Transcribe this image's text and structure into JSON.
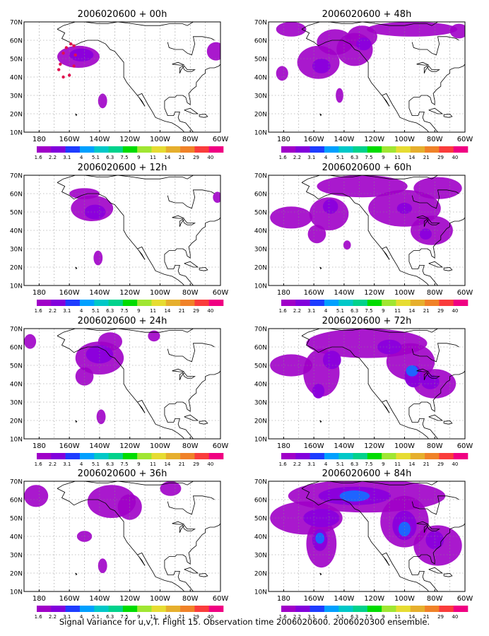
{
  "caption": "Signal Variance for u,v,T. Flight 15. Observation time 2006020600. 2006020300 ensemble.",
  "colorbar": {
    "labels": [
      "1.6",
      "2.2",
      "3.1",
      "4",
      "5.1",
      "6.3",
      "7.5",
      "9",
      "11",
      "14",
      "21",
      "29",
      "40"
    ],
    "colors": [
      "#a000c8",
      "#8200dc",
      "#1e3cff",
      "#00a0ff",
      "#00c8c8",
      "#00d28c",
      "#00dc00",
      "#a0e632",
      "#e6dc32",
      "#e6af2d",
      "#f08228",
      "#fa3c3c",
      "#f00082"
    ]
  },
  "chart_data": [
    {
      "type": "heatmap",
      "title": "2006020600 + 00h",
      "lead_hours": 0,
      "x_ticks": [
        "180",
        "160W",
        "140W",
        "120W",
        "100W",
        "80W",
        "60W"
      ],
      "y_ticks": [
        "10N",
        "20N",
        "30N",
        "40N",
        "50N",
        "60N",
        "70N"
      ],
      "xlim": [
        -190,
        -60
      ],
      "ylim": [
        10,
        70
      ],
      "blobs": [
        {
          "lon": -154,
          "lat": 51,
          "rlon": 14,
          "rlat": 6,
          "level": 1
        },
        {
          "lon": -152,
          "lat": 52,
          "rlon": 8,
          "rlat": 3.5,
          "level": 2
        },
        {
          "lon": -138,
          "lat": 27,
          "rlon": 3,
          "rlat": 4,
          "level": 1
        },
        {
          "lon": -63,
          "lat": 54,
          "rlon": 6,
          "rlat": 5,
          "level": 1
        }
      ],
      "observations": [
        {
          "lon": -166,
          "lat": 47
        },
        {
          "lon": -164,
          "lat": 53
        },
        {
          "lon": -162,
          "lat": 56
        },
        {
          "lon": -159,
          "lat": 58
        },
        {
          "lon": -157,
          "lat": 57
        },
        {
          "lon": -156,
          "lat": 52
        },
        {
          "lon": -157,
          "lat": 46
        },
        {
          "lon": -160,
          "lat": 41
        },
        {
          "lon": -164,
          "lat": 40
        },
        {
          "lon": -167,
          "lat": 44
        }
      ]
    },
    {
      "type": "heatmap",
      "title": "2006020600 + 48h",
      "lead_hours": 48,
      "x_ticks": [
        "180",
        "160W",
        "140W",
        "120W",
        "100W",
        "80W",
        "60W"
      ],
      "y_ticks": [
        "10N",
        "20N",
        "30N",
        "40N",
        "50N",
        "60N",
        "70N"
      ],
      "xlim": [
        -190,
        -60
      ],
      "ylim": [
        10,
        70
      ],
      "blobs": [
        {
          "lon": -157,
          "lat": 48,
          "rlon": 14,
          "rlat": 9,
          "level": 1
        },
        {
          "lon": -146,
          "lat": 59,
          "rlon": 12,
          "rlat": 7,
          "level": 1
        },
        {
          "lon": -133,
          "lat": 55,
          "rlon": 12,
          "rlat": 9,
          "level": 1
        },
        {
          "lon": -128,
          "lat": 62,
          "rlon": 10,
          "rlat": 6,
          "level": 1
        },
        {
          "lon": -155,
          "lat": 46,
          "rlon": 6,
          "rlat": 4,
          "level": 2
        },
        {
          "lon": -127,
          "lat": 58,
          "rlon": 5,
          "rlat": 3.5,
          "level": 2
        },
        {
          "lon": -175,
          "lat": 66,
          "rlon": 10,
          "rlat": 4,
          "level": 1
        },
        {
          "lon": -95,
          "lat": 66,
          "rlon": 30,
          "rlat": 4,
          "level": 1
        },
        {
          "lon": -64,
          "lat": 65,
          "rlon": 6,
          "rlat": 4,
          "level": 1
        },
        {
          "lon": -181,
          "lat": 42,
          "rlon": 4,
          "rlat": 4,
          "level": 1
        },
        {
          "lon": -143,
          "lat": 30,
          "rlon": 2.5,
          "rlat": 4,
          "level": 1
        }
      ],
      "observations": []
    },
    {
      "type": "heatmap",
      "title": "2006020600 + 12h",
      "lead_hours": 12,
      "x_ticks": [
        "180",
        "160W",
        "140W",
        "120W",
        "100W",
        "80W",
        "60W"
      ],
      "y_ticks": [
        "10N",
        "20N",
        "30N",
        "40N",
        "50N",
        "60N",
        "70N"
      ],
      "xlim": [
        -190,
        -60
      ],
      "ylim": [
        10,
        70
      ],
      "blobs": [
        {
          "lon": -145,
          "lat": 52,
          "rlon": 14,
          "rlat": 7,
          "level": 1
        },
        {
          "lon": -150,
          "lat": 60,
          "rlon": 10,
          "rlat": 3,
          "level": 1
        },
        {
          "lon": -143,
          "lat": 50,
          "rlon": 7,
          "rlat": 4,
          "level": 2
        },
        {
          "lon": -141,
          "lat": 25,
          "rlon": 3,
          "rlat": 4,
          "level": 1
        },
        {
          "lon": -62,
          "lat": 58,
          "rlon": 3,
          "rlat": 3,
          "level": 1
        }
      ],
      "observations": []
    },
    {
      "type": "heatmap",
      "title": "2006020600 + 60h",
      "lead_hours": 60,
      "x_ticks": [
        "180",
        "160W",
        "140W",
        "120W",
        "100W",
        "80W",
        "60W"
      ],
      "y_ticks": [
        "10N",
        "20N",
        "30N",
        "40N",
        "50N",
        "60N",
        "70N"
      ],
      "xlim": [
        -190,
        -60
      ],
      "ylim": [
        10,
        70
      ],
      "blobs": [
        {
          "lon": -175,
          "lat": 47,
          "rlon": 14,
          "rlat": 6,
          "level": 1
        },
        {
          "lon": -150,
          "lat": 49,
          "rlon": 13,
          "rlat": 9,
          "level": 1
        },
        {
          "lon": -128,
          "lat": 64,
          "rlon": 30,
          "rlat": 6,
          "level": 1
        },
        {
          "lon": -100,
          "lat": 52,
          "rlon": 24,
          "rlat": 10,
          "level": 1
        },
        {
          "lon": -82,
          "lat": 40,
          "rlon": 14,
          "rlat": 8,
          "level": 1
        },
        {
          "lon": -78,
          "lat": 63,
          "rlon": 16,
          "rlat": 6,
          "level": 1
        },
        {
          "lon": -158,
          "lat": 38,
          "rlon": 6,
          "rlat": 5,
          "level": 1
        },
        {
          "lon": -149,
          "lat": 53,
          "rlon": 5,
          "rlat": 4,
          "level": 2
        },
        {
          "lon": -100,
          "lat": 52,
          "rlon": 5,
          "rlat": 3,
          "level": 2
        },
        {
          "lon": -86,
          "lat": 38,
          "rlon": 4,
          "rlat": 3,
          "level": 2
        },
        {
          "lon": -138,
          "lat": 32,
          "rlon": 2.5,
          "rlat": 2.5,
          "level": 1
        }
      ],
      "observations": []
    },
    {
      "type": "heatmap",
      "title": "2006020600 + 24h",
      "lead_hours": 24,
      "x_ticks": [
        "180",
        "160W",
        "140W",
        "120W",
        "100W",
        "80W",
        "60W"
      ],
      "y_ticks": [
        "10N",
        "20N",
        "30N",
        "40N",
        "50N",
        "60N",
        "70N"
      ],
      "xlim": [
        -190,
        -60
      ],
      "ylim": [
        10,
        70
      ],
      "blobs": [
        {
          "lon": -140,
          "lat": 54,
          "rlon": 16,
          "rlat": 9,
          "level": 1
        },
        {
          "lon": -150,
          "lat": 44,
          "rlon": 6,
          "rlat": 5,
          "level": 1
        },
        {
          "lon": -133,
          "lat": 63,
          "rlon": 8,
          "rlat": 5,
          "level": 1
        },
        {
          "lon": -140,
          "lat": 56,
          "rlon": 9,
          "rlat": 5,
          "level": 2
        },
        {
          "lon": -186,
          "lat": 63,
          "rlon": 4,
          "rlat": 4,
          "level": 1
        },
        {
          "lon": -104,
          "lat": 66,
          "rlon": 4,
          "rlat": 3,
          "level": 1
        },
        {
          "lon": -139,
          "lat": 22,
          "rlon": 3,
          "rlat": 4,
          "level": 1
        }
      ],
      "observations": []
    },
    {
      "type": "heatmap",
      "title": "2006020600 + 72h",
      "lead_hours": 72,
      "x_ticks": [
        "180",
        "160W",
        "140W",
        "120W",
        "100W",
        "80W",
        "60W"
      ],
      "y_ticks": [
        "10N",
        "20N",
        "30N",
        "40N",
        "50N",
        "60N",
        "70N"
      ],
      "xlim": [
        -190,
        -60
      ],
      "ylim": [
        10,
        70
      ],
      "blobs": [
        {
          "lon": -175,
          "lat": 50,
          "rlon": 14,
          "rlat": 6,
          "level": 1
        },
        {
          "lon": -155,
          "lat": 46,
          "rlon": 12,
          "rlat": 13,
          "level": 1
        },
        {
          "lon": -125,
          "lat": 62,
          "rlon": 40,
          "rlat": 8,
          "level": 1
        },
        {
          "lon": -96,
          "lat": 52,
          "rlon": 16,
          "rlat": 10,
          "level": 1
        },
        {
          "lon": -80,
          "lat": 40,
          "rlon": 14,
          "rlat": 8,
          "level": 1
        },
        {
          "lon": -148,
          "lat": 53,
          "rlon": 6,
          "rlat": 5,
          "level": 2
        },
        {
          "lon": -157,
          "lat": 36,
          "rlon": 4,
          "rlat": 4,
          "level": 2
        },
        {
          "lon": -94,
          "lat": 44,
          "rlon": 6,
          "rlat": 6,
          "level": 2
        },
        {
          "lon": -83,
          "lat": 41,
          "rlon": 6,
          "rlat": 4,
          "level": 2
        },
        {
          "lon": -110,
          "lat": 60,
          "rlon": 8,
          "rlat": 4,
          "level": 2
        },
        {
          "lon": -95,
          "lat": 47,
          "rlon": 4,
          "rlat": 3,
          "level": 3
        }
      ],
      "observations": []
    },
    {
      "type": "heatmap",
      "title": "2006020600 + 36h",
      "lead_hours": 36,
      "x_ticks": [
        "180",
        "160W",
        "140W",
        "120W",
        "100W",
        "80W",
        "60W"
      ],
      "y_ticks": [
        "10N",
        "20N",
        "30N",
        "40N",
        "50N",
        "60N",
        "70N"
      ],
      "xlim": [
        -190,
        -60
      ],
      "ylim": [
        10,
        70
      ],
      "blobs": [
        {
          "lon": -132,
          "lat": 59,
          "rlon": 16,
          "rlat": 9,
          "level": 1
        },
        {
          "lon": -120,
          "lat": 56,
          "rlon": 8,
          "rlat": 7,
          "level": 1
        },
        {
          "lon": -182,
          "lat": 62,
          "rlon": 8,
          "rlat": 6,
          "level": 1
        },
        {
          "lon": -150,
          "lat": 40,
          "rlon": 5,
          "rlat": 3,
          "level": 1
        },
        {
          "lon": -138,
          "lat": 24,
          "rlon": 3,
          "rlat": 4,
          "level": 1
        },
        {
          "lon": -93,
          "lat": 66,
          "rlon": 7,
          "rlat": 4,
          "level": 1
        }
      ],
      "observations": []
    },
    {
      "type": "heatmap",
      "title": "2006020600 + 84h",
      "lead_hours": 84,
      "x_ticks": [
        "180",
        "160W",
        "140W",
        "120W",
        "100W",
        "80W",
        "60W"
      ],
      "y_ticks": [
        "10N",
        "20N",
        "30N",
        "40N",
        "50N",
        "60N",
        "70N"
      ],
      "xlim": [
        -190,
        -60
      ],
      "ylim": [
        10,
        70
      ],
      "blobs": [
        {
          "lon": -165,
          "lat": 50,
          "rlon": 24,
          "rlat": 9,
          "level": 1
        },
        {
          "lon": -155,
          "lat": 36,
          "rlon": 10,
          "rlat": 13,
          "level": 1
        },
        {
          "lon": -125,
          "lat": 62,
          "rlon": 52,
          "rlat": 9,
          "level": 1
        },
        {
          "lon": -100,
          "lat": 48,
          "rlon": 16,
          "rlat": 14,
          "level": 1
        },
        {
          "lon": -78,
          "lat": 35,
          "rlon": 16,
          "rlat": 11,
          "level": 1
        },
        {
          "lon": -133,
          "lat": 62,
          "rlon": 24,
          "rlat": 5,
          "level": 2
        },
        {
          "lon": -155,
          "lat": 50,
          "rlon": 12,
          "rlat": 5,
          "level": 2
        },
        {
          "lon": -156,
          "lat": 38,
          "rlon": 5,
          "rlat": 6,
          "level": 2
        },
        {
          "lon": -100,
          "lat": 46,
          "rlon": 8,
          "rlat": 8,
          "level": 2
        },
        {
          "lon": -80,
          "lat": 38,
          "rlon": 6,
          "rlat": 5,
          "level": 2
        },
        {
          "lon": -133,
          "lat": 62,
          "rlon": 10,
          "rlat": 3,
          "level": 3
        },
        {
          "lon": -156,
          "lat": 39,
          "rlon": 3,
          "rlat": 3,
          "level": 3
        },
        {
          "lon": -100,
          "lat": 44,
          "rlon": 4,
          "rlat": 4,
          "level": 3
        }
      ],
      "observations": []
    }
  ]
}
